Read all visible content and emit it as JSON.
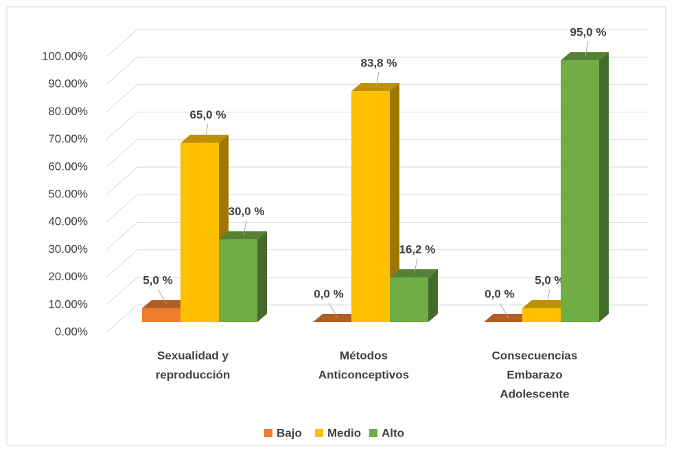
{
  "chart_data": {
    "type": "bar3d",
    "categories": [
      [
        "Sexualidad y",
        "reproducción"
      ],
      [
        "Métodos",
        "Anticonceptivos"
      ],
      [
        "Consecuencias",
        "Embarazo",
        "Adolescente"
      ]
    ],
    "series": [
      {
        "name": "Bajo",
        "color": "#ed7d31",
        "values": [
          5,
          0,
          0
        ],
        "value_labels": [
          "5,0 %",
          "0,0 %",
          "0,0 %"
        ]
      },
      {
        "name": "Medio",
        "color": "#ffc000",
        "values": [
          65,
          83.8,
          5
        ],
        "value_labels": [
          "65,0 %",
          "83,8 %",
          "5,0 %"
        ]
      },
      {
        "name": "Alto",
        "color": "#70ad47",
        "values": [
          30,
          16.2,
          95
        ],
        "value_labels": [
          "30,0 %",
          "16,2 %",
          "95,0 %"
        ]
      }
    ],
    "ylim": [
      0,
      100
    ],
    "yticks": [
      {
        "value": 0,
        "label": "0.00%"
      },
      {
        "value": 10,
        "label": "10.00%"
      },
      {
        "value": 20,
        "label": "20.00%"
      },
      {
        "value": 30,
        "label": "30.00%"
      },
      {
        "value": 40,
        "label": "40.00%"
      },
      {
        "value": 50,
        "label": "50.00%"
      },
      {
        "value": 60,
        "label": "60.00%"
      },
      {
        "value": 70,
        "label": "70.00%"
      },
      {
        "value": 80,
        "label": "80.00%"
      },
      {
        "value": 90,
        "label": "90.00%"
      },
      {
        "value": 100,
        "label": "100.00%"
      }
    ],
    "grid": true,
    "legend": "bottom"
  }
}
